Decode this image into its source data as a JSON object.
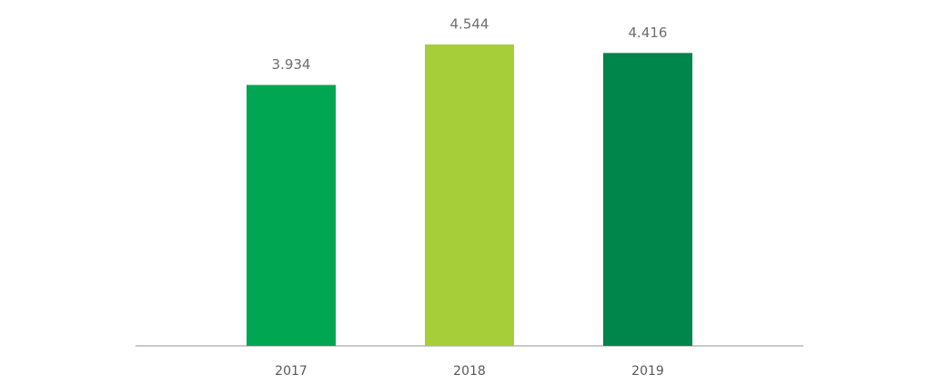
{
  "chart_data": {
    "type": "bar",
    "categories": [
      "2017",
      "2018",
      "2019"
    ],
    "values": [
      3.934,
      4.544,
      4.416
    ],
    "colors": [
      "#00a651",
      "#a6ce39",
      "#00854a"
    ]
  }
}
